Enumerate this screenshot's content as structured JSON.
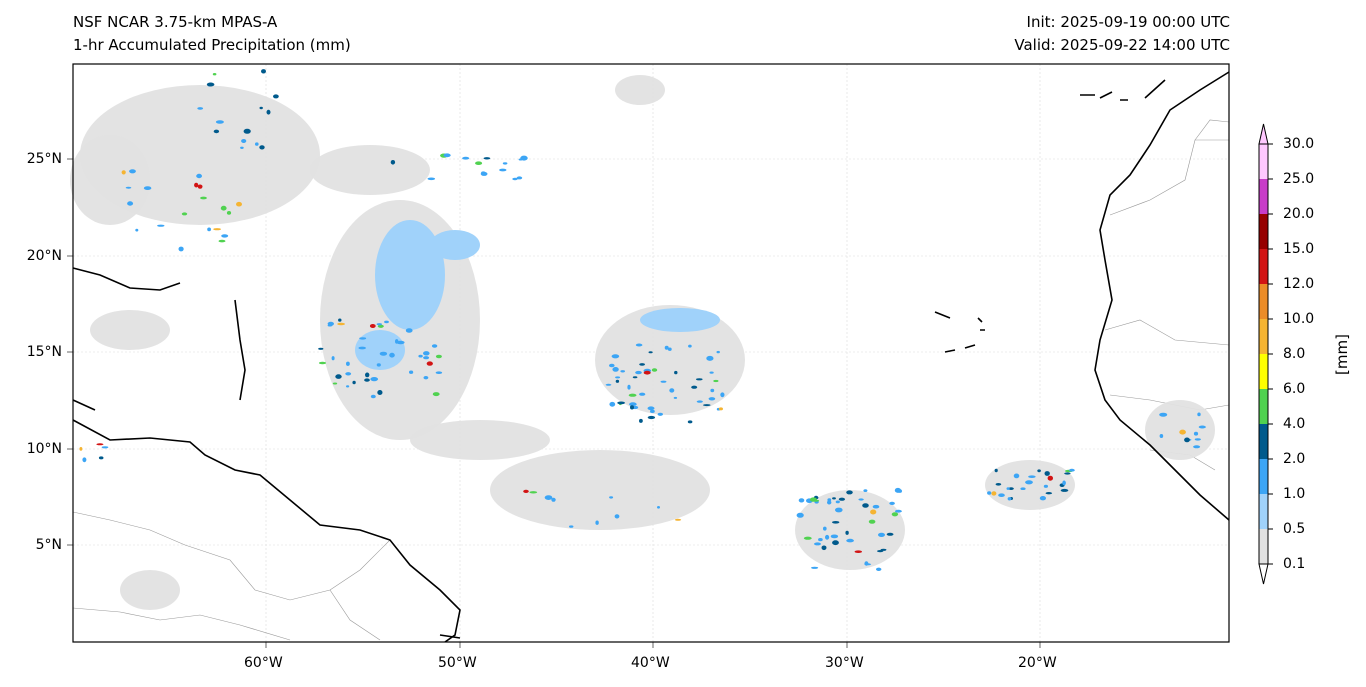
{
  "header": {
    "model": "NSF NCAR 3.75-km MPAS-A",
    "field": "1-hr Accumulated Precipitation (mm)",
    "init": "Init: 2025-09-19 00:00 UTC",
    "valid": "Valid: 2025-09-22 14:00 UTC"
  },
  "map": {
    "lon_range": [
      -70,
      -10
    ],
    "lat_range": [
      0,
      30
    ],
    "lon_ticks": [
      "60°W",
      "50°W",
      "40°W",
      "30°W",
      "20°W"
    ],
    "lat_ticks": [
      "25°N",
      "20°N",
      "15°N",
      "10°N",
      "5°N"
    ]
  },
  "colorbar": {
    "label": "[mm]",
    "ticks": [
      "0.1",
      "0.5",
      "1.0",
      "2.0",
      "4.0",
      "6.0",
      "8.0",
      "10.0",
      "12.0",
      "15.0",
      "20.0",
      "25.0",
      "30.0"
    ],
    "colors": [
      "#e1e1e1",
      "#a0d2fa",
      "#3ca5f5",
      "#005a8c",
      "#50d250",
      "#ffff00",
      "#f5b432",
      "#eb8c28",
      "#d21414",
      "#960000",
      "#c83cc8",
      "#ffc8ff"
    ]
  }
}
